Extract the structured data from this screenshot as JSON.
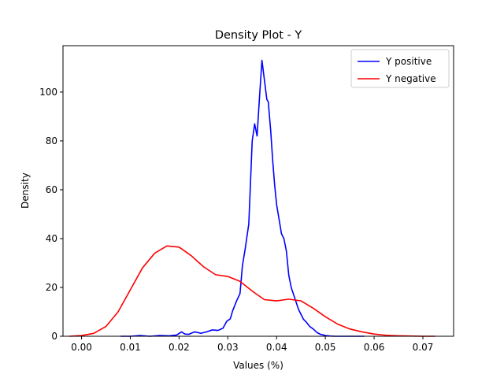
{
  "chart_data": {
    "type": "line",
    "title": "Density Plot - Y",
    "xlabel": "Values (%)",
    "ylabel": "Density",
    "xlim": [
      -0.0038,
      0.0763
    ],
    "ylim": [
      0,
      119
    ],
    "xticks": [
      0.0,
      0.01,
      0.02,
      0.03,
      0.04,
      0.05,
      0.06,
      0.07
    ],
    "xtick_labels": [
      "0.00",
      "0.01",
      "0.02",
      "0.03",
      "0.04",
      "0.05",
      "0.06",
      "0.07"
    ],
    "yticks": [
      0,
      20,
      40,
      60,
      80,
      100
    ],
    "ytick_labels": [
      "0",
      "20",
      "40",
      "60",
      "80",
      "100"
    ],
    "grid": false,
    "legend_position": "top-right",
    "series": [
      {
        "name": "Y positive",
        "color": "#0000ff",
        "x": [
          0.008,
          0.01,
          0.012,
          0.014,
          0.016,
          0.018,
          0.0195,
          0.0205,
          0.0212,
          0.022,
          0.0232,
          0.0245,
          0.0258,
          0.0268,
          0.028,
          0.029,
          0.0298,
          0.0305,
          0.031,
          0.0318,
          0.0325,
          0.033,
          0.0335,
          0.0343,
          0.035,
          0.0355,
          0.036,
          0.0365,
          0.037,
          0.0375,
          0.038,
          0.0383,
          0.0388,
          0.0392,
          0.0396,
          0.04,
          0.0405,
          0.041,
          0.0415,
          0.042,
          0.0425,
          0.043,
          0.0435,
          0.044,
          0.0445,
          0.045,
          0.0455,
          0.046,
          0.0468,
          0.0475,
          0.0483,
          0.049,
          0.05,
          0.051,
          0.052,
          0.053,
          0.0545,
          0.056,
          0.058
        ],
        "values": [
          0,
          0,
          0.3,
          0,
          0.3,
          0.2,
          0.5,
          1.8,
          0.9,
          0.8,
          1.8,
          1.2,
          1.9,
          2.6,
          2.4,
          3.3,
          6.2,
          7.1,
          10.5,
          14.5,
          17.5,
          29,
          35,
          46,
          80,
          87,
          82,
          98,
          113,
          105,
          97,
          96,
          84,
          72,
          62,
          54,
          48,
          42,
          40,
          35,
          25,
          20,
          17,
          14,
          11,
          9,
          7,
          6,
          4,
          3,
          1.5,
          0.8,
          0.3,
          0.1,
          0,
          0,
          0,
          0,
          0
        ]
      },
      {
        "name": "Y negative",
        "color": "#ff0000",
        "x": [
          -0.0025,
          0.0,
          0.0025,
          0.005,
          0.0075,
          0.01,
          0.0125,
          0.015,
          0.0175,
          0.02,
          0.0225,
          0.025,
          0.0275,
          0.03,
          0.0325,
          0.035,
          0.0375,
          0.04,
          0.0425,
          0.045,
          0.0475,
          0.05,
          0.0525,
          0.055,
          0.0575,
          0.06,
          0.0625,
          0.065,
          0.0675,
          0.07,
          0.0725
        ],
        "values": [
          0,
          0.3,
          1.2,
          4,
          10,
          19,
          28,
          34,
          37,
          36.5,
          33,
          28.5,
          25.2,
          24.5,
          22.5,
          18.5,
          15,
          14.5,
          15.2,
          14.5,
          11.5,
          8,
          5,
          3,
          1.8,
          0.9,
          0.4,
          0.2,
          0.1,
          0,
          0
        ]
      }
    ]
  }
}
